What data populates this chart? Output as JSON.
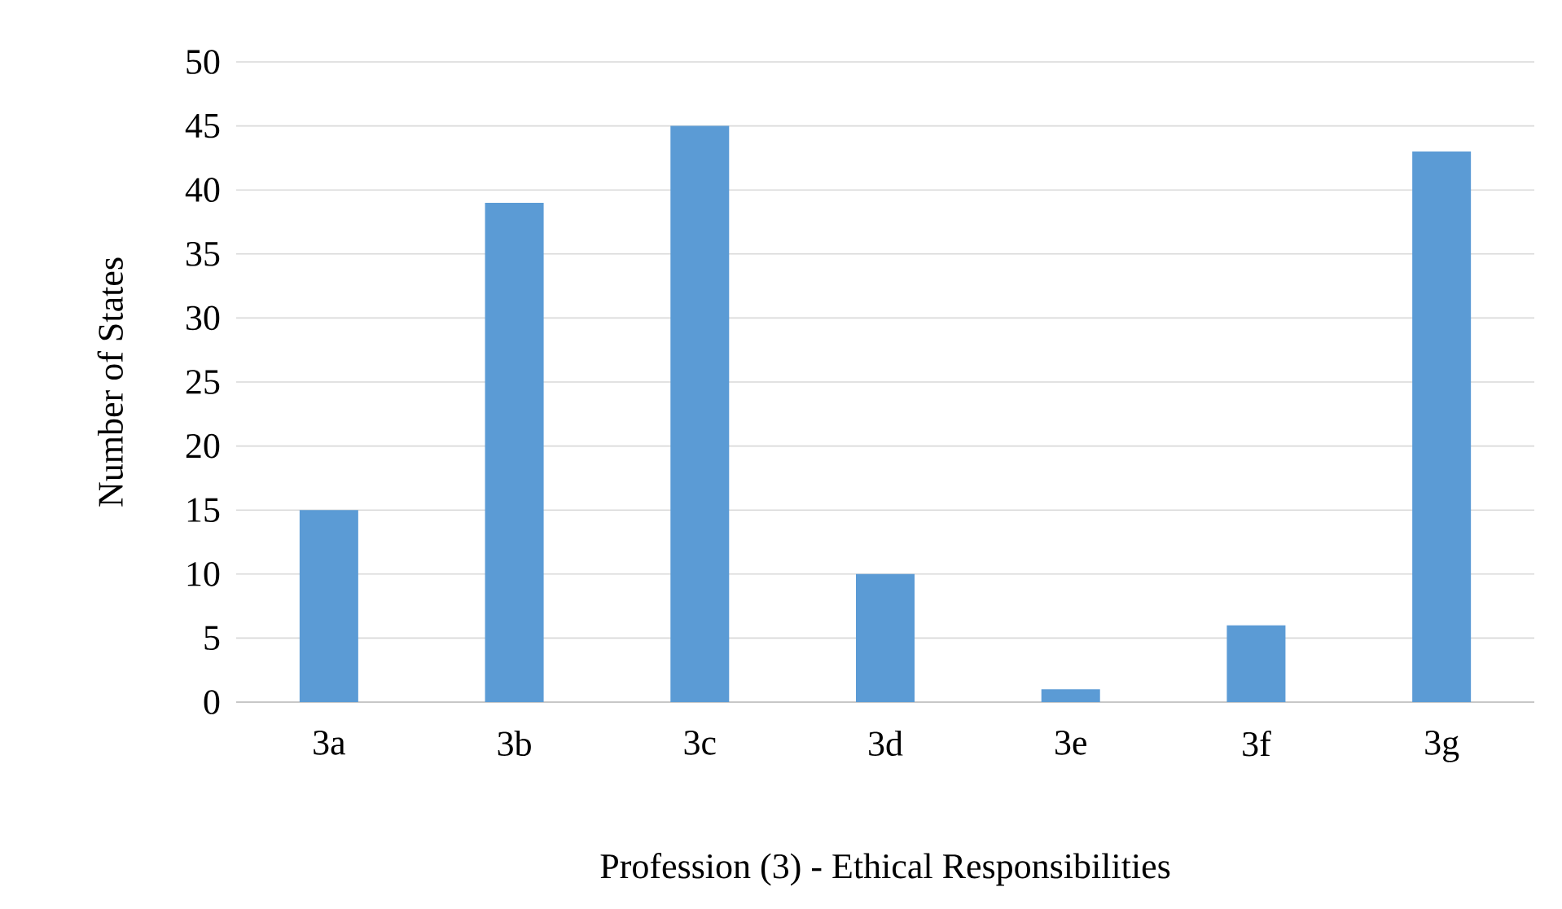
{
  "chart_data": {
    "type": "bar",
    "xlabel": "Profession (3) - Ethical Responsibilities",
    "ylabel": "Number of States",
    "categories": [
      "3a",
      "3b",
      "3c",
      "3d",
      "3e",
      "3f",
      "3g"
    ],
    "values": [
      15,
      39,
      45,
      10,
      1,
      6,
      43
    ],
    "color": "#5b9bd5",
    "ylim": [
      0,
      50
    ],
    "yticks": [
      0,
      5,
      10,
      15,
      20,
      25,
      30,
      35,
      40,
      45,
      50
    ],
    "grid": "y"
  }
}
